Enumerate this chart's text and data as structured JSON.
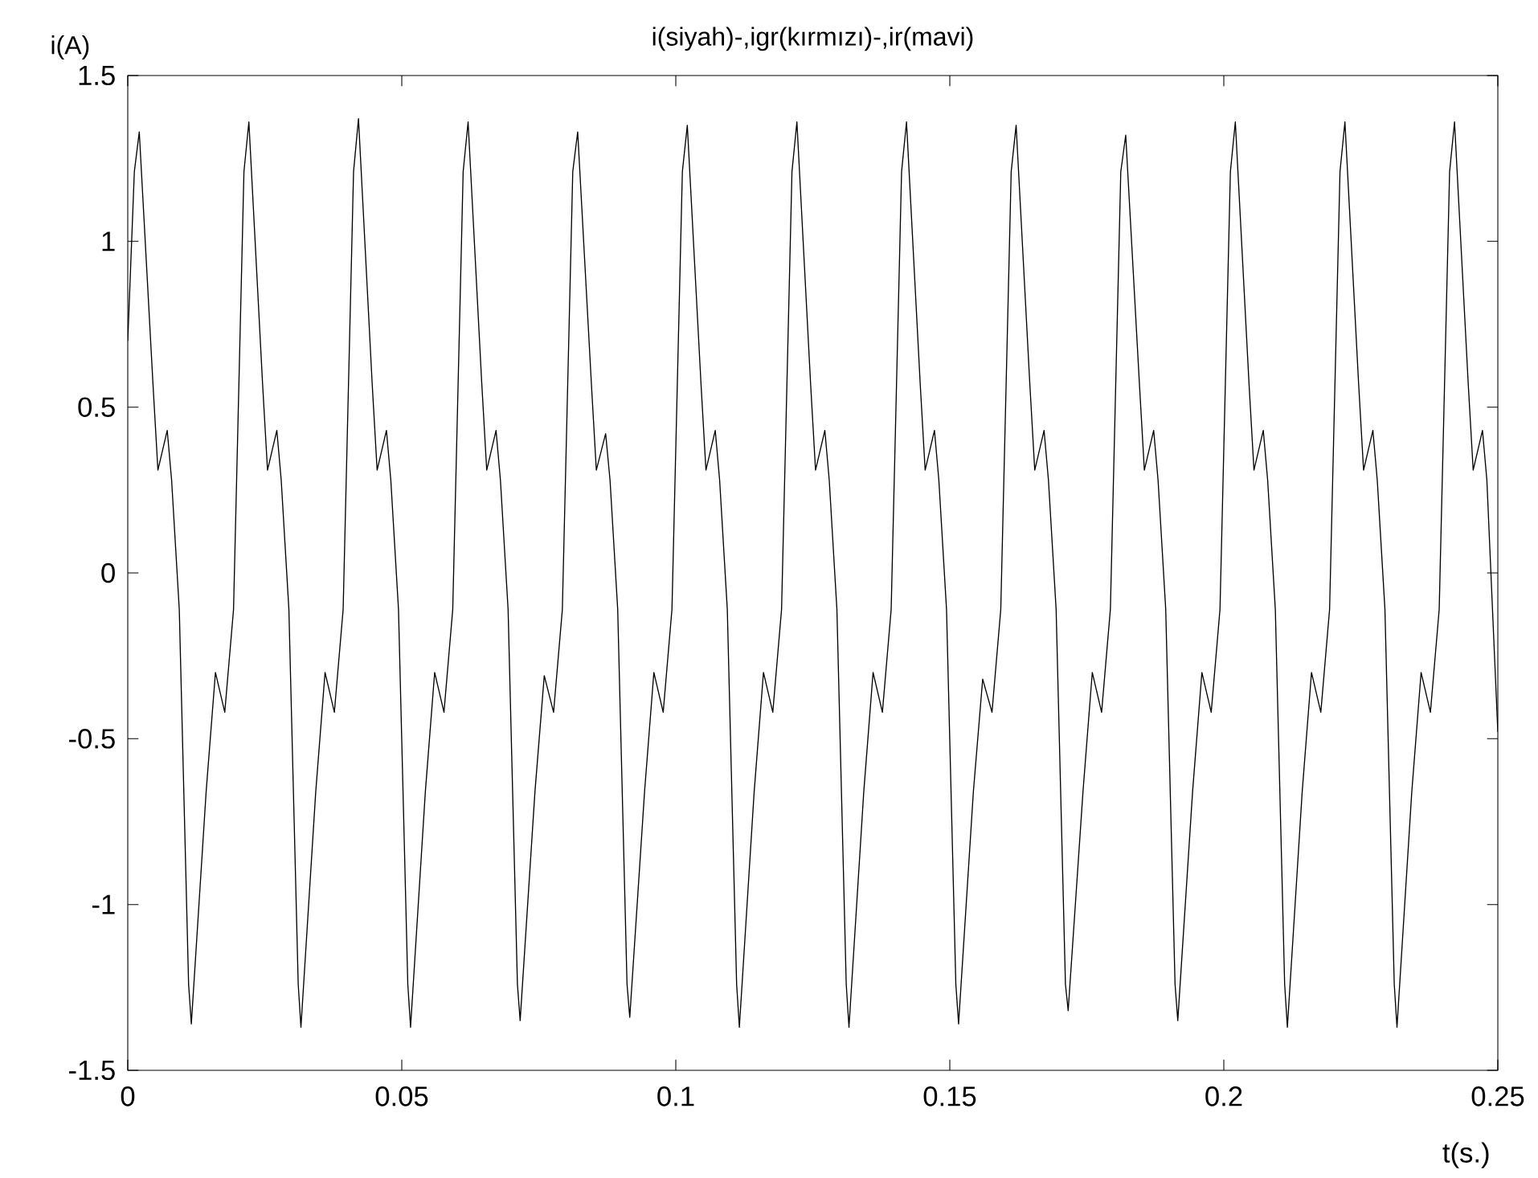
{
  "chart_data": {
    "type": "line",
    "title": "i(siyah)-,igr(kırmızı)-,ir(mavi)",
    "xlabel": "t(s.)",
    "ylabel": "i(A)",
    "xlim": [
      0,
      0.25
    ],
    "ylim": [
      -1.5,
      1.5
    ],
    "xticks": [
      0,
      0.05,
      0.1,
      0.15,
      0.2,
      0.25
    ],
    "yticks": [
      -1.5,
      -1,
      -0.5,
      0,
      0.5,
      1,
      1.5
    ],
    "grid": false,
    "line_style": "solid",
    "marker": "none",
    "series": [
      {
        "color": "#000000",
        "x": [
          0,
          0.0012,
          0.0021,
          0.0046,
          0.0055,
          0.0072,
          0.008,
          0.0094,
          0.0111,
          0.0116,
          0.0143,
          0.016,
          0.0177,
          0.0193,
          0.0212,
          0.0221,
          0.0246,
          0.0255,
          0.0272,
          0.028,
          0.0294,
          0.0311,
          0.0316,
          0.0343,
          0.036,
          0.0377,
          0.0393,
          0.0412,
          0.0421,
          0.0446,
          0.0455,
          0.0472,
          0.048,
          0.0494,
          0.0511,
          0.0516,
          0.0543,
          0.056,
          0.0577,
          0.0593,
          0.0612,
          0.0621,
          0.0646,
          0.0655,
          0.0672,
          0.068,
          0.0694,
          0.0711,
          0.0716,
          0.0743,
          0.076,
          0.0777,
          0.0793,
          0.0812,
          0.0821,
          0.0846,
          0.0855,
          0.0872,
          0.088,
          0.0894,
          0.0911,
          0.0916,
          0.0943,
          0.096,
          0.0977,
          0.0993,
          0.1012,
          0.1021,
          0.1046,
          0.1055,
          0.1072,
          0.108,
          0.1094,
          0.1111,
          0.1116,
          0.1143,
          0.116,
          0.1177,
          0.1193,
          0.1212,
          0.1221,
          0.1246,
          0.1255,
          0.1272,
          0.128,
          0.1294,
          0.1311,
          0.1316,
          0.1343,
          0.136,
          0.1377,
          0.1393,
          0.1412,
          0.1421,
          0.1446,
          0.1455,
          0.1472,
          0.148,
          0.1494,
          0.1511,
          0.1516,
          0.1543,
          0.156,
          0.1577,
          0.1593,
          0.1612,
          0.1621,
          0.1646,
          0.1655,
          0.1672,
          0.168,
          0.1694,
          0.1711,
          0.1716,
          0.1743,
          0.176,
          0.1777,
          0.1793,
          0.1812,
          0.1821,
          0.1846,
          0.1855,
          0.1872,
          0.188,
          0.1894,
          0.1911,
          0.1916,
          0.1943,
          0.196,
          0.1977,
          0.1993,
          0.2012,
          0.2021,
          0.2046,
          0.2055,
          0.2072,
          0.208,
          0.2094,
          0.2111,
          0.2116,
          0.2143,
          0.216,
          0.2177,
          0.2193,
          0.2212,
          0.2221,
          0.2246,
          0.2255,
          0.2272,
          0.228,
          0.2294,
          0.2311,
          0.2316,
          0.2343,
          0.236,
          0.2377,
          0.2393,
          0.2412,
          0.2421,
          0.2446,
          0.2455,
          0.2472,
          0.248,
          0.25
        ],
        "values": [
          0.7,
          1.21,
          1.33,
          0.57,
          0.31,
          0.43,
          0.28,
          -0.11,
          -1.24,
          -1.36,
          -0.66,
          -0.3,
          -0.42,
          -0.11,
          1.21,
          1.36,
          0.57,
          0.31,
          0.43,
          0.28,
          -0.11,
          -1.24,
          -1.37,
          -0.66,
          -0.3,
          -0.42,
          -0.11,
          1.21,
          1.37,
          0.57,
          0.31,
          0.43,
          0.28,
          -0.11,
          -1.24,
          -1.37,
          -0.66,
          -0.3,
          -0.42,
          -0.11,
          1.21,
          1.36,
          0.57,
          0.31,
          0.43,
          0.28,
          -0.11,
          -1.24,
          -1.35,
          -0.66,
          -0.31,
          -0.42,
          -0.11,
          1.21,
          1.33,
          0.57,
          0.31,
          0.42,
          0.28,
          -0.11,
          -1.24,
          -1.34,
          -0.66,
          -0.3,
          -0.42,
          -0.11,
          1.21,
          1.35,
          0.57,
          0.31,
          0.43,
          0.28,
          -0.11,
          -1.24,
          -1.37,
          -0.66,
          -0.3,
          -0.42,
          -0.11,
          1.21,
          1.36,
          0.57,
          0.31,
          0.43,
          0.28,
          -0.11,
          -1.24,
          -1.37,
          -0.66,
          -0.3,
          -0.42,
          -0.11,
          1.21,
          1.36,
          0.57,
          0.31,
          0.43,
          0.28,
          -0.11,
          -1.24,
          -1.36,
          -0.66,
          -0.32,
          -0.42,
          -0.11,
          1.21,
          1.35,
          0.57,
          0.31,
          0.43,
          0.28,
          -0.11,
          -1.24,
          -1.32,
          -0.66,
          -0.3,
          -0.42,
          -0.11,
          1.21,
          1.32,
          0.57,
          0.31,
          0.43,
          0.28,
          -0.11,
          -1.24,
          -1.35,
          -0.66,
          -0.3,
          -0.42,
          -0.11,
          1.21,
          1.36,
          0.57,
          0.31,
          0.43,
          0.28,
          -0.11,
          -1.24,
          -1.37,
          -0.66,
          -0.3,
          -0.42,
          -0.11,
          1.21,
          1.36,
          0.57,
          0.31,
          0.43,
          0.28,
          -0.11,
          -1.24,
          -1.37,
          -0.66,
          -0.3,
          -0.42,
          -0.11,
          1.21,
          1.36,
          0.57,
          0.31,
          0.43,
          0.28,
          -0.48
        ]
      }
    ]
  }
}
